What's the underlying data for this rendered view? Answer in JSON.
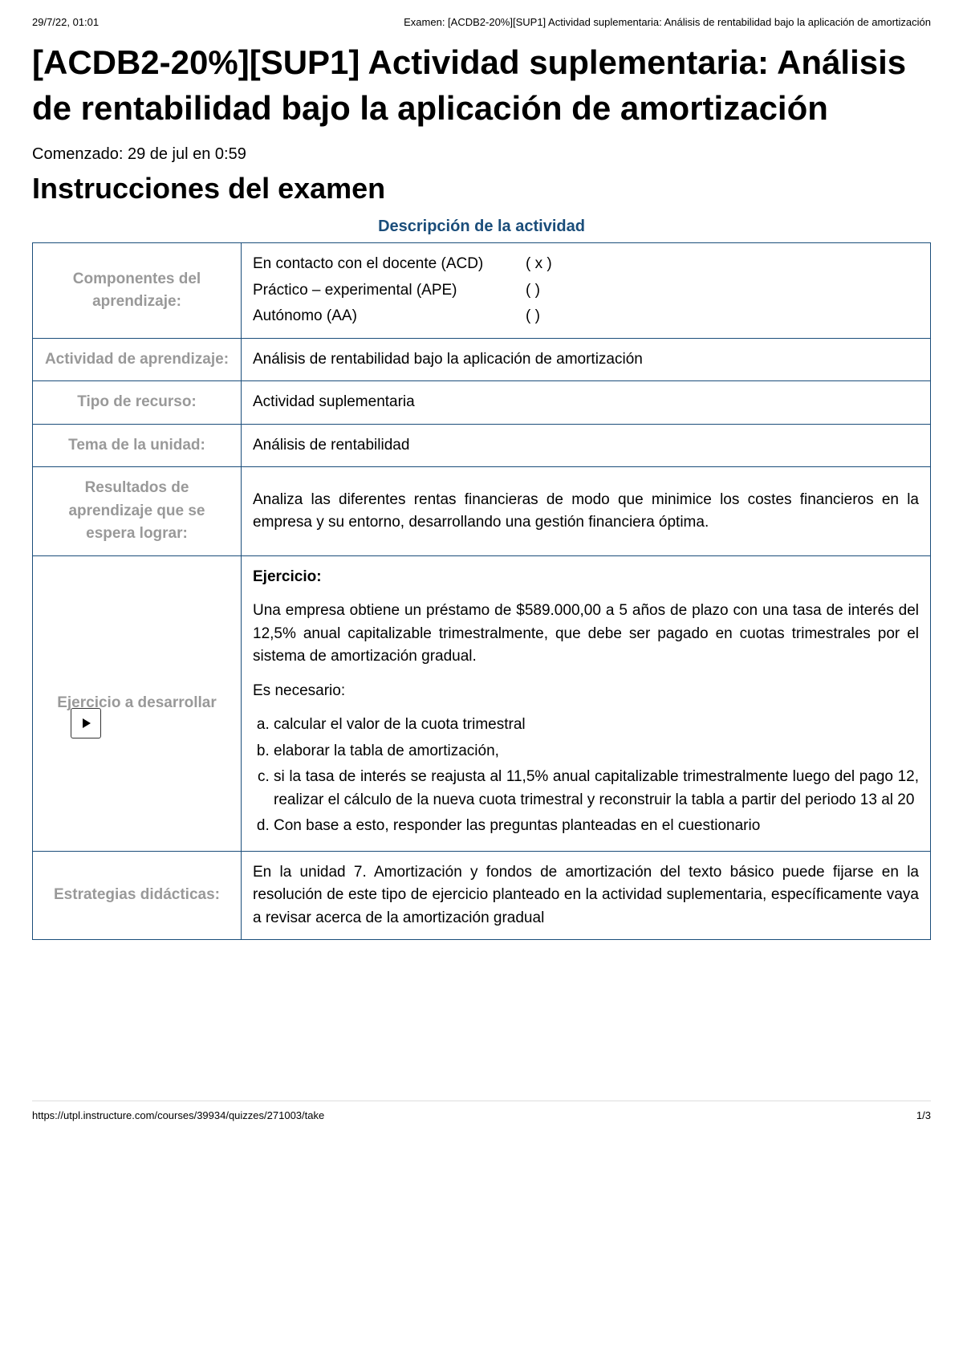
{
  "meta": {
    "timestamp": "29/7/22, 01:01",
    "docTitle": "Examen: [ACDB2-20%][SUP1] Actividad suplementaria: Análisis de rentabilidad bajo la aplicación de amortización"
  },
  "mainTitle": "[ACDB2-20%][SUP1] Actividad suplementaria: Análisis de rentabilidad bajo la aplicación de amortización",
  "startedText": "Comenzado: 29 de jul en 0:59",
  "instructionsTitle": "Instrucciones del examen",
  "activityDescTitle": "Descripción de la actividad",
  "colors": {
    "tableBorder": "#1a4d7a",
    "labelGray": "#999999",
    "titleBlue": "#1a4d7a"
  },
  "rows": {
    "components": {
      "label": "Componentes del aprendizaje:",
      "items": [
        {
          "label": "En contacto con el docente (ACD)",
          "check": "( x )"
        },
        {
          "label": "Práctico – experimental (APE)",
          "check": "(    )"
        },
        {
          "label": "Autónomo (AA)",
          "check": "(    )"
        }
      ]
    },
    "learningActivity": {
      "label": "Actividad de aprendizaje:",
      "value": "Análisis de rentabilidad bajo la aplicación de amortización"
    },
    "resourceType": {
      "label": "Tipo de recurso:",
      "value": "Actividad suplementaria"
    },
    "unitTheme": {
      "label": "Tema de la unidad:",
      "value": "Análisis de rentabilidad"
    },
    "learningResults": {
      "label": "Resultados de aprendizaje que se espera lograr:",
      "value": "Analiza las diferentes rentas financieras de modo que minimice los costes financieros en la empresa y su entorno, desarrollando una gestión financiera óptima."
    },
    "exercise": {
      "label": "Ejercicio a desarrollar",
      "heading": "Ejercicio:",
      "intro": "Una empresa obtiene un préstamo de $589.000,00 a 5 años de plazo con una tasa de interés del 12,5% anual capitalizable trimestralmente, que debe ser pagado en cuotas trimestrales por el sistema de amortización gradual.",
      "necessary": "Es necesario:",
      "items": [
        "calcular el valor de la cuota trimestral",
        "elaborar la tabla de amortización,",
        "si la tasa de interés se reajusta al 11,5% anual capitalizable trimestralmente luego del pago 12, realizar el cálculo de la nueva cuota trimestral y reconstruir la tabla a partir del periodo 13 al 20",
        "Con base a esto, responder las preguntas planteadas en el cuestionario"
      ]
    },
    "strategies": {
      "label": "Estrategias didácticas:",
      "value": "En la unidad 7. Amortización y fondos de amortización del texto básico puede fijarse en la resolución de este tipo de ejercicio planteado en la actividad suplementaria, específicamente vaya a revisar acerca de la amortización gradual"
    }
  },
  "footer": {
    "url": "https://utpl.instructure.com/courses/39934/quizzes/271003/take",
    "page": "1/3"
  }
}
